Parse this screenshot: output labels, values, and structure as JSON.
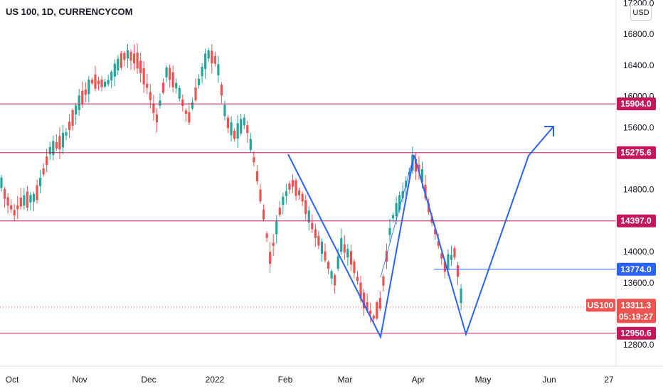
{
  "chart_data": {
    "type": "candlestick",
    "title": "US 100, 1D, CURRENCYCOM",
    "currency": "USD",
    "x_ticks": [
      "Oct",
      "Nov",
      "Dec",
      "2022",
      "Feb",
      "Mar",
      "Apr",
      "May",
      "Jun",
      "27"
    ],
    "y_ticks": [
      "17200.0",
      "16800.0",
      "16400.0",
      "16000.0",
      "15600.0",
      "14800.0",
      "14000.0",
      "13600.0",
      "12800.0"
    ],
    "ylim": [
      12700,
      17200
    ],
    "levels": [
      {
        "label": "15904.0",
        "value": 15904.0,
        "color": "#c2185b"
      },
      {
        "label": "15275.6",
        "value": 15275.6,
        "color": "#c2185b"
      },
      {
        "label": "14397.0",
        "value": 14397.0,
        "color": "#c2185b"
      },
      {
        "label": "13774.0",
        "value": 13774.0,
        "color": "#2962ff"
      },
      {
        "label": "12950.6",
        "value": 12950.6,
        "color": "#c2185b"
      }
    ],
    "last_price": {
      "symbol": "US100",
      "value": "13311.3",
      "countdown": "05:19:27"
    },
    "colors": {
      "up": "#26a69a",
      "down": "#ef5350",
      "line": "#c2185b",
      "drawing": "#2962ff"
    }
  }
}
